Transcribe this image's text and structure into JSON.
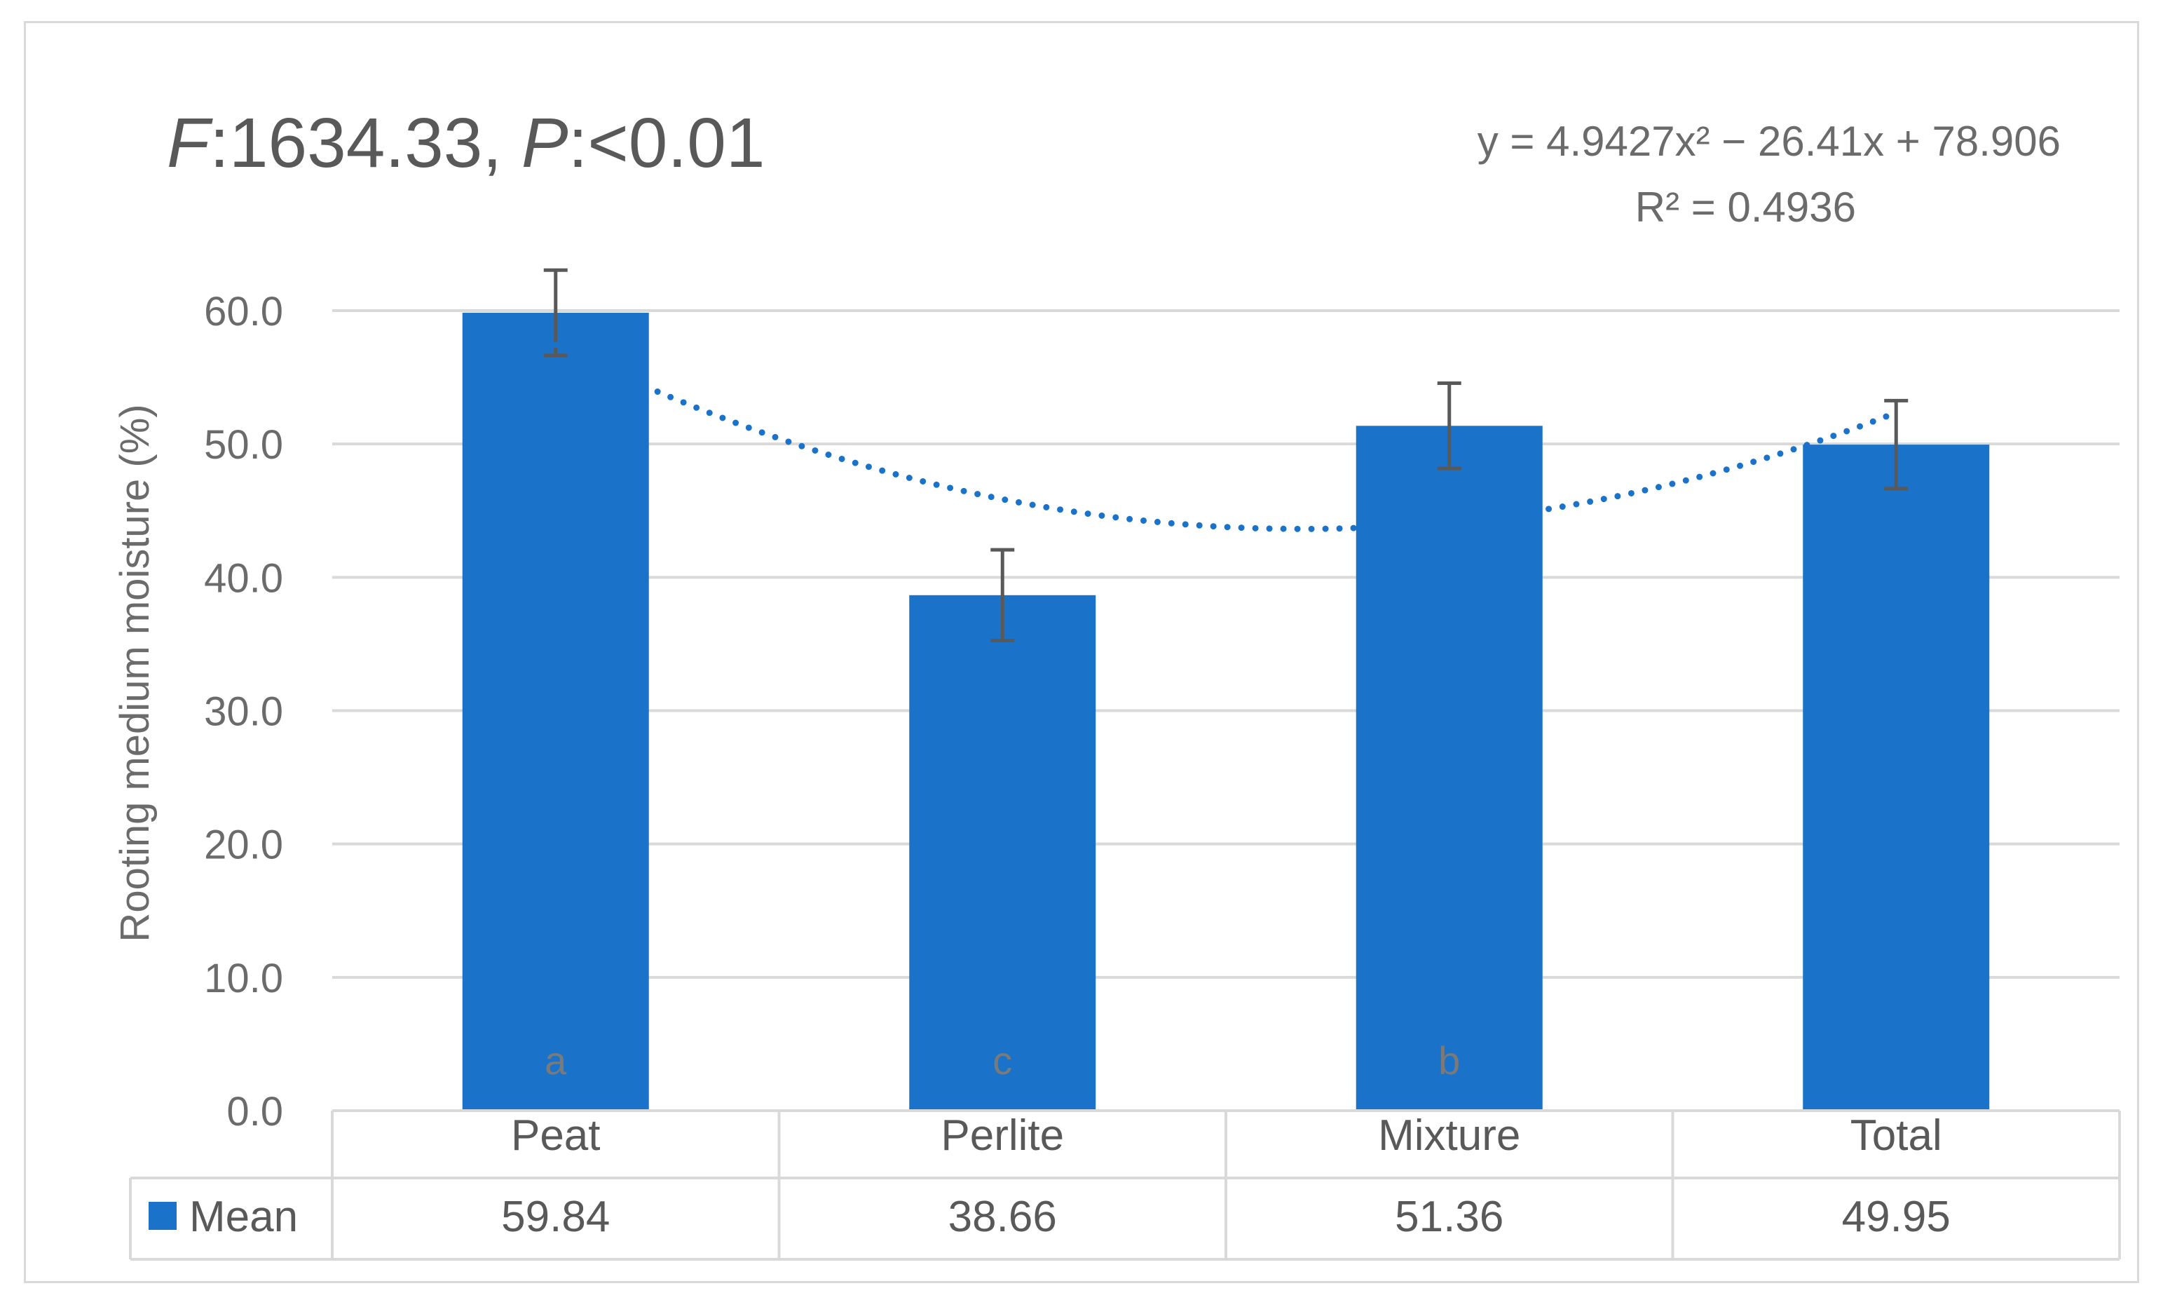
{
  "title_parts": {
    "f_label": "F",
    "f_value": ":1634.33, ",
    "p_label": "P",
    "p_value": ":<0.01"
  },
  "trendline": {
    "equation": "y = 4.9427x² − 26.41x + 78.906",
    "r_squared": "R² = 0.4936",
    "coefficients": {
      "a": 4.9427,
      "b": -26.41,
      "c": 78.906
    }
  },
  "colors": {
    "bar": "#1a73c8",
    "trendline": "#1a73c8",
    "grid": "#d9d9d9",
    "error_bar": "#595959",
    "text": "#6b6b6b"
  },
  "chart_data": {
    "type": "bar",
    "ylabel": "Rooting medium moisture (%)",
    "ylim": [
      0,
      60
    ],
    "yticks": [
      "0.0",
      "10.0",
      "20.0",
      "30.0",
      "40.0",
      "50.0",
      "60.0"
    ],
    "grid": true,
    "categories": [
      "Peat",
      "Perlite",
      "Mixture",
      "Total"
    ],
    "series": [
      {
        "name": "Mean",
        "values": [
          59.84,
          38.66,
          51.36,
          49.95
        ],
        "errors": [
          3.2,
          3.4,
          3.2,
          3.3
        ],
        "letters": [
          "a",
          "c",
          "b",
          ""
        ]
      }
    ],
    "data_table": {
      "row_label": "Mean",
      "cells": [
        "59.84",
        "38.66",
        "51.36",
        "49.95"
      ]
    }
  }
}
